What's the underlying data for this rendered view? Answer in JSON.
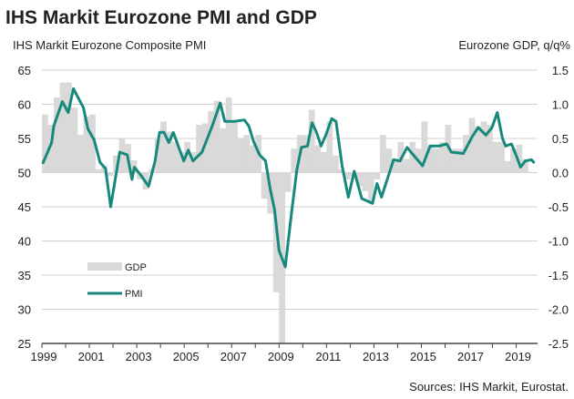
{
  "chart_data": {
    "type": "bar+line",
    "title": "IHS Markit Eurozone PMI and GDP",
    "ylabel_left": "IHS Markit Eurozone Composite PMI",
    "ylabel_right": "Eurozone GDP, q/q%",
    "source": "Sources: IHS Markit, Eurostat.",
    "ylim_left": [
      25,
      65
    ],
    "ylim_right": [
      -2.5,
      1.5
    ],
    "xlim": [
      1999,
      2019.9
    ],
    "left_ticks": [
      "65",
      "60",
      "55",
      "50",
      "45",
      "40",
      "35",
      "30",
      "25"
    ],
    "right_ticks": [
      "1.5",
      "1.0",
      "0.5",
      "0.0",
      "-0.5",
      "-1.0",
      "-1.5",
      "-2.0",
      "-2.5"
    ],
    "x_tick_labels": [
      "1999",
      "2001",
      "2003",
      "2005",
      "2007",
      "2009",
      "2011",
      "2013",
      "2015",
      "2017",
      "2019"
    ],
    "grid": true,
    "legend": {
      "position": "lower-left",
      "entries": [
        "GDP",
        "PMI"
      ]
    },
    "colors": {
      "gdp": "#d9d9d9",
      "pmi": "#17897c"
    },
    "series": [
      {
        "name": "GDP",
        "type": "bar",
        "axis": "right",
        "start_year": 1999,
        "frequency": "quarterly",
        "values": [
          0.85,
          0.7,
          1.1,
          1.32,
          1.32,
          0.95,
          0.55,
          0.82,
          0.85,
          0.05,
          0.1,
          -0.05,
          0.25,
          0.5,
          0.42,
          0.18,
          -0.1,
          -0.25,
          0.05,
          0.5,
          0.75,
          0.6,
          0.45,
          0.3,
          0.45,
          0.3,
          0.7,
          0.72,
          0.9,
          1.05,
          0.65,
          1.1,
          0.75,
          0.5,
          0.55,
          0.4,
          0.55,
          -0.38,
          -0.6,
          -1.75,
          -2.5,
          -0.28,
          0.35,
          0.55,
          0.55,
          0.92,
          0.4,
          0.3,
          0.75,
          0.25,
          0.05,
          -0.1,
          -0.05,
          -0.2,
          -0.27,
          -0.45,
          -0.1,
          0.55,
          0.35,
          0.2,
          0.45,
          0.2,
          0.45,
          0.35,
          0.75,
          0.4,
          0.35,
          0.45,
          0.7,
          0.35,
          0.35,
          0.55,
          0.8,
          0.68,
          0.75,
          0.7,
          0.45,
          0.45,
          0.17,
          0.35,
          0.41,
          0.2
        ]
      },
      {
        "name": "PMI",
        "type": "line",
        "axis": "left",
        "x": [
          1999.03,
          1999.41,
          1999.5,
          1999.86,
          2000.11,
          2000.33,
          2000.75,
          2000.94,
          2001.2,
          2001.45,
          2001.68,
          2001.9,
          2002.28,
          2002.6,
          2002.8,
          2002.9,
          2003.2,
          2003.5,
          2003.77,
          2003.96,
          2004.15,
          2004.35,
          2004.54,
          2004.98,
          2005.17,
          2005.37,
          2005.75,
          2006.2,
          2006.52,
          2006.71,
          2007.1,
          2007.54,
          2007.73,
          2007.92,
          2008.18,
          2008.43,
          2008.62,
          2008.81,
          2009.0,
          2009.26,
          2009.51,
          2009.75,
          2009.94,
          2010.2,
          2010.39,
          2010.58,
          2010.77,
          2010.97,
          2011.22,
          2011.4,
          2011.66,
          2011.92,
          2012.17,
          2012.49,
          2012.94,
          2013.13,
          2013.32,
          2013.83,
          2014.1,
          2014.4,
          2014.66,
          2015.05,
          2015.37,
          2015.75,
          2016.07,
          2016.26,
          2016.77,
          2017.15,
          2017.4,
          2017.72,
          2017.98,
          2018.2,
          2018.42,
          2018.55,
          2018.8,
          2018.99,
          2019.18,
          2019.38,
          2019.64,
          2019.77
        ],
        "values": [
          51.3,
          54.4,
          56.8,
          60.4,
          58.8,
          62.3,
          59.5,
          56.4,
          54.8,
          51.5,
          50.6,
          45.0,
          53.0,
          52.6,
          49.0,
          50.8,
          49.5,
          48.0,
          51.7,
          55.9,
          55.9,
          54.4,
          55.9,
          51.7,
          53.3,
          51.7,
          53.0,
          57.0,
          60.2,
          57.5,
          57.5,
          57.7,
          56.8,
          54.6,
          52.6,
          51.7,
          47.7,
          44.6,
          38.6,
          36.2,
          43.7,
          50.4,
          53.7,
          53.9,
          57.3,
          55.9,
          53.9,
          55.5,
          57.9,
          57.5,
          51.0,
          46.4,
          50.2,
          46.2,
          45.5,
          48.4,
          46.4,
          51.9,
          51.7,
          53.7,
          52.6,
          51.0,
          53.9,
          53.9,
          54.2,
          53.0,
          52.8,
          55.3,
          56.6,
          55.5,
          56.6,
          58.8,
          55.0,
          53.9,
          54.2,
          52.6,
          50.8,
          51.7,
          51.9,
          51.4
        ]
      }
    ]
  }
}
